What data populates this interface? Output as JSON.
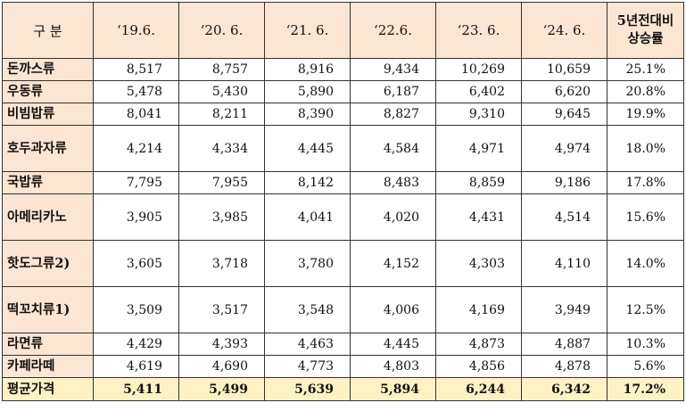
{
  "header": {
    "category": "구 분",
    "periods": [
      "‘19.6.",
      "‘20. 6.",
      "‘21. 6.",
      "‘22.6.",
      "‘23. 6.",
      "‘24. 6."
    ],
    "rate_line1": "5년전대비",
    "rate_line2": "상승률"
  },
  "rows": [
    {
      "name": "돈까스류",
      "values": [
        "8,517",
        "8,757",
        "8,916",
        "9,434",
        "10,269",
        "10,659"
      ],
      "rate": "25.1%"
    },
    {
      "name": "우동류",
      "values": [
        "5,478",
        "5,430",
        "5,890",
        "6,187",
        "6,402",
        "6,620"
      ],
      "rate": "20.8%"
    },
    {
      "name": "비빔밥류",
      "values": [
        "8,041",
        "8,211",
        "8,390",
        "8,827",
        "9,310",
        "9,645"
      ],
      "rate": "19.9%"
    },
    {
      "name": "호두과자류",
      "values": [
        "4,214",
        "4,334",
        "4,445",
        "4,584",
        "4,971",
        "4,974"
      ],
      "rate": "18.0%"
    },
    {
      "name": "국밥류",
      "values": [
        "7,795",
        "7,955",
        "8,142",
        "8,483",
        "8,859",
        "9,186"
      ],
      "rate": "17.8%"
    },
    {
      "name": "아메리카노",
      "values": [
        "3,905",
        "3,985",
        "4,041",
        "4,020",
        "4,431",
        "4,514"
      ],
      "rate": "15.6%"
    },
    {
      "name": "핫도그류2)",
      "values": [
        "3,605",
        "3,718",
        "3,780",
        "4,152",
        "4,303",
        "4,110"
      ],
      "rate": "14.0%"
    },
    {
      "name": "떡꼬치류1)",
      "values": [
        "3,509",
        "3,517",
        "3,548",
        "4,006",
        "4,169",
        "3,949"
      ],
      "rate": "12.5%"
    },
    {
      "name": "라면류",
      "values": [
        "4,429",
        "4,393",
        "4,463",
        "4,445",
        "4,873",
        "4,887"
      ],
      "rate": "10.3%"
    },
    {
      "name": "카페라떼",
      "values": [
        "4,619",
        "4,690",
        "4,773",
        "4,803",
        "4,856",
        "4,878"
      ],
      "rate": "5.6%"
    }
  ],
  "average": {
    "name": "평균가격",
    "values": [
      "5,411",
      "5,499",
      "5,639",
      "5,894",
      "6,244",
      "6,342"
    ],
    "rate": "17.2%"
  }
}
